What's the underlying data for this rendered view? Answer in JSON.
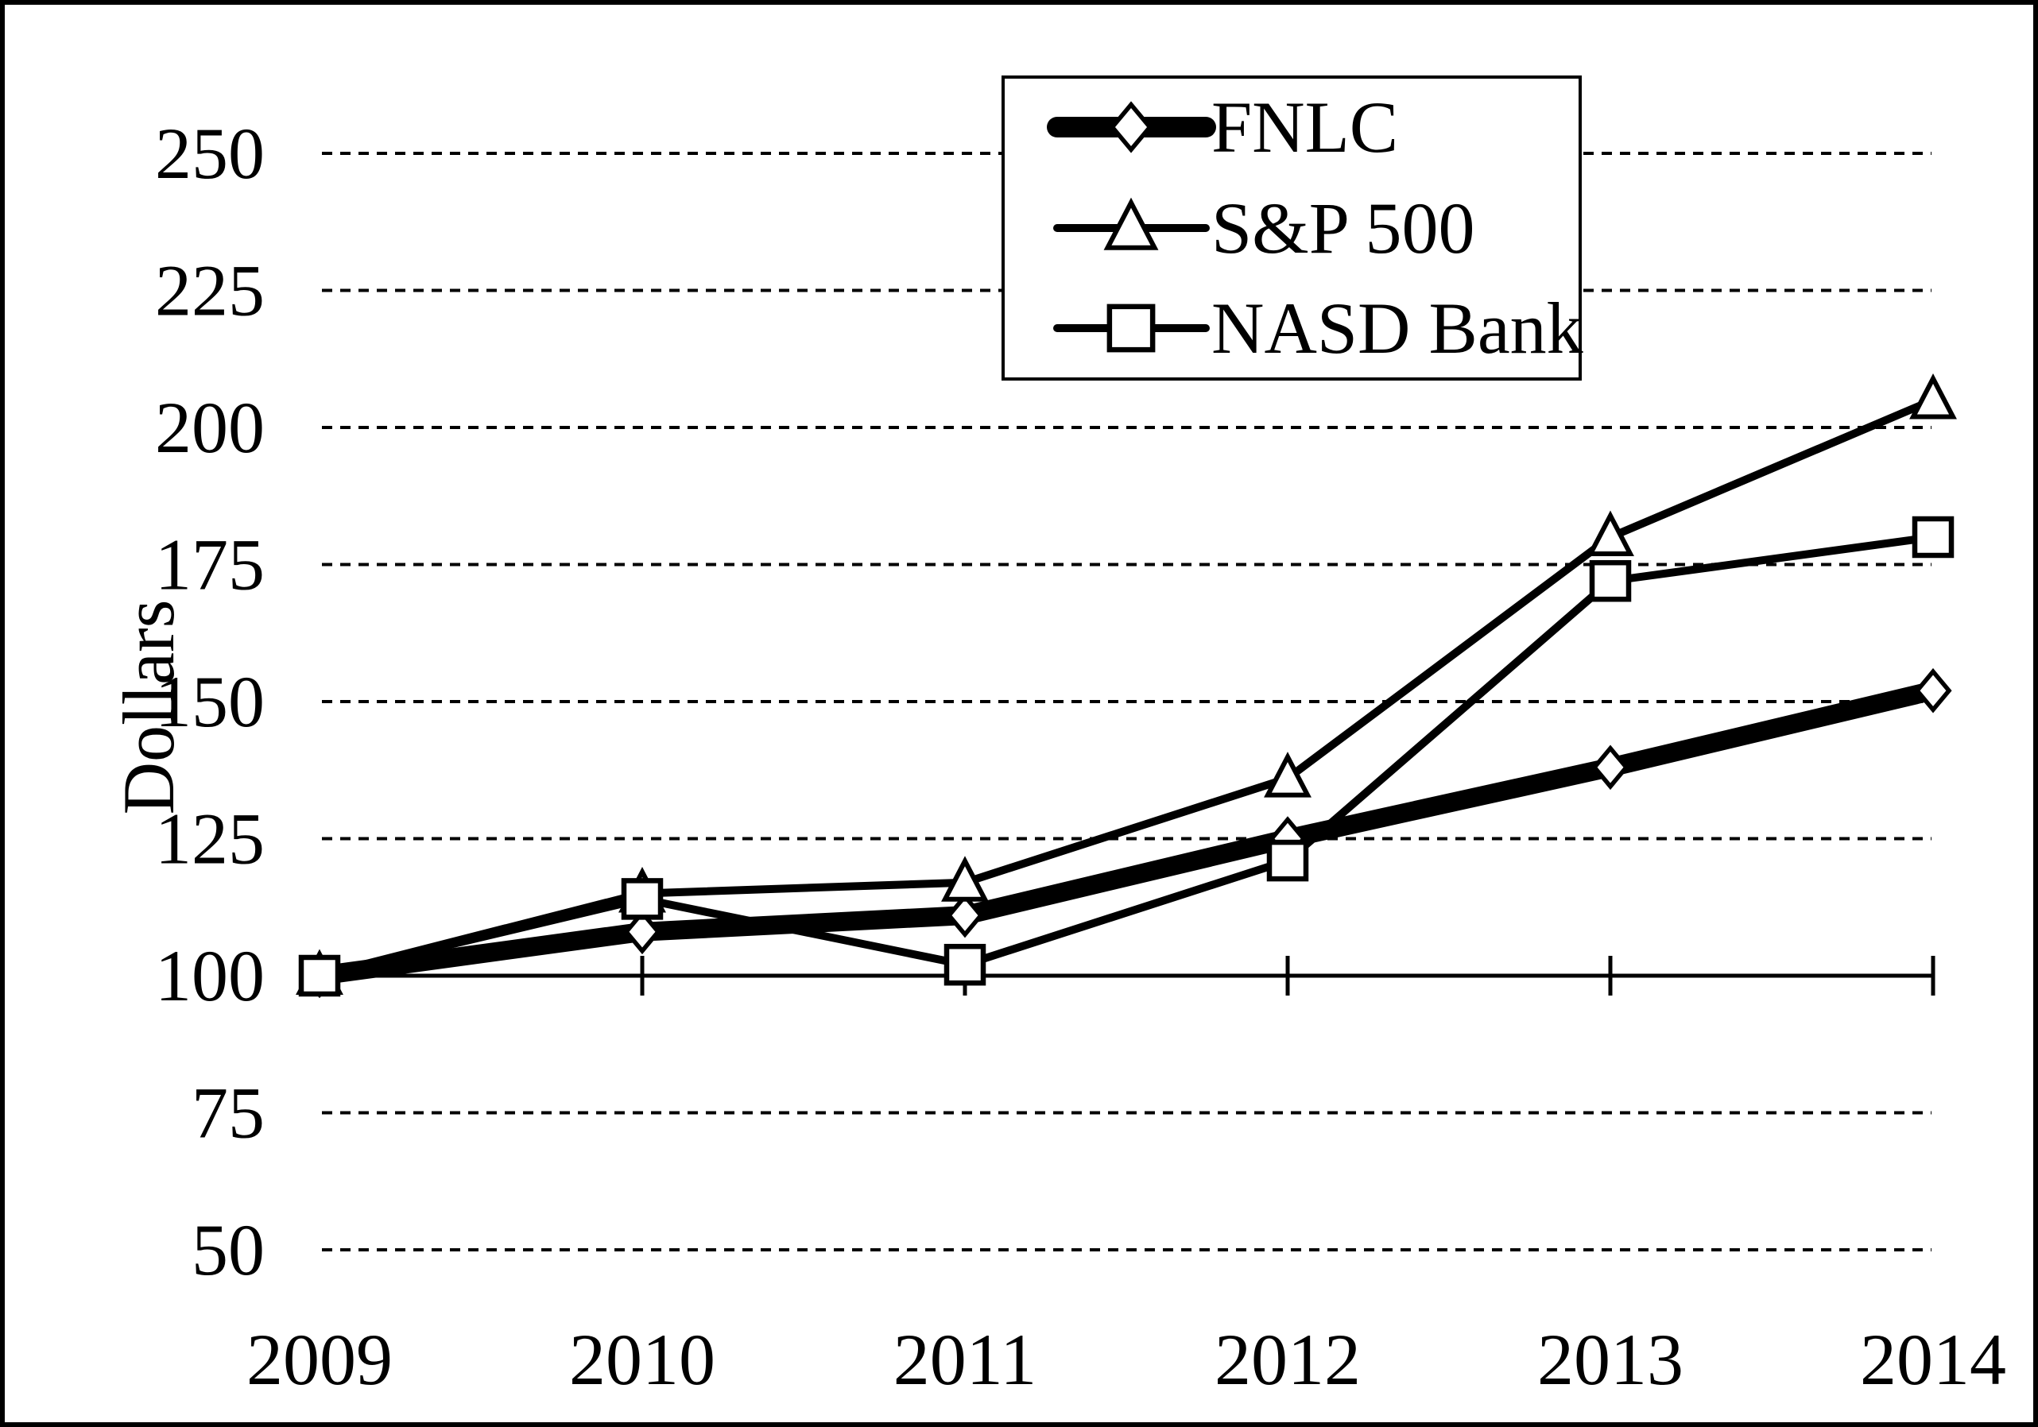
{
  "figure": {
    "background": "#ffffff",
    "border_color": "#000000"
  },
  "chart_data": {
    "type": "line",
    "title": "",
    "xlabel": "",
    "ylabel": "Dollars",
    "categories": [
      "2009",
      "2010",
      "2011",
      "2012",
      "2013",
      "2014"
    ],
    "series": [
      {
        "name": "FNLC",
        "marker": "diamond",
        "line_style": "thick",
        "values": [
          100,
          108,
          111,
          125,
          138,
          152
        ]
      },
      {
        "name": "S&P 500",
        "marker": "triangle",
        "line_style": "thin",
        "values": [
          100,
          115,
          117,
          136,
          180,
          205
        ]
      },
      {
        "name": "NASD Bank",
        "marker": "square",
        "line_style": "thin",
        "values": [
          100,
          114,
          102,
          121,
          172,
          180
        ]
      }
    ],
    "y_ticks": [
      250,
      225,
      200,
      175,
      150,
      125,
      100,
      75,
      50
    ],
    "ylim": [
      50,
      250
    ],
    "baseline_value": 100,
    "grid": "dotted-horizontal",
    "legend_position": "top-center",
    "colors": {
      "line": "#000000",
      "marker_fill": "#ffffff",
      "background": "#ffffff"
    }
  }
}
